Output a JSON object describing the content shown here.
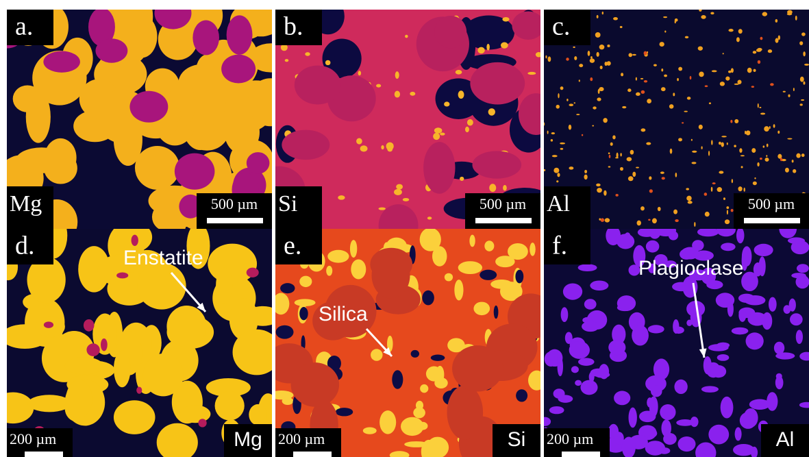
{
  "panels": [
    {
      "label": "a.",
      "element": "Mg",
      "scale_bar": "500 µm"
    },
    {
      "label": "b.",
      "element": "Si",
      "scale_bar": "500 µm"
    },
    {
      "label": "c.",
      "element": "Al",
      "scale_bar": "500 µm"
    },
    {
      "label": "d.",
      "element": "Mg",
      "scale_bar": "200 µm",
      "annotation": "Enstatite"
    },
    {
      "label": "e.",
      "element": "Si",
      "scale_bar": "200 µm",
      "annotation": "Silica"
    },
    {
      "label": "f.",
      "element": "Al",
      "scale_bar": "200 µm",
      "annotation": "Plagioclase"
    }
  ]
}
